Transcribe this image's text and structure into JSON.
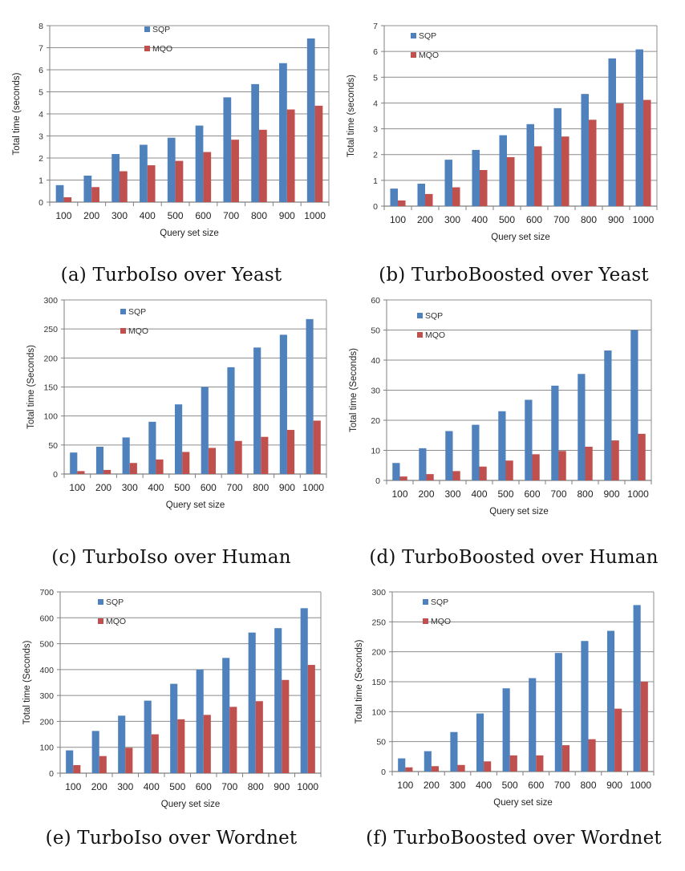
{
  "colors": {
    "SQP": "#4F81BD",
    "MQO": "#C0504D",
    "grid": "#8c8c8c",
    "axis": "#7f7f7f"
  },
  "chart_data": [
    {
      "type": "bar",
      "panel": "a",
      "caption": "(a) TurboIso over Yeast",
      "xlabel": "Query set size",
      "ylabel": "Total time (seconds)",
      "categories": [
        "100",
        "200",
        "300",
        "400",
        "500",
        "600",
        "700",
        "800",
        "900",
        "1000"
      ],
      "ylim": [
        0,
        8
      ],
      "yticks": [
        0,
        1,
        2,
        3,
        4,
        5,
        6,
        7,
        8
      ],
      "grid": true,
      "legend_position": "top-center",
      "series": [
        {
          "name": "SQP",
          "values": [
            0.77,
            1.2,
            2.18,
            2.6,
            2.92,
            3.47,
            4.75,
            5.35,
            6.3,
            7.42
          ]
        },
        {
          "name": "MQO",
          "values": [
            0.22,
            0.68,
            1.4,
            1.67,
            1.87,
            2.27,
            2.83,
            3.28,
            4.2,
            4.37
          ]
        }
      ]
    },
    {
      "type": "bar",
      "panel": "b",
      "caption": "(b) TurboBoosted over Yeast",
      "xlabel": "Query set size",
      "ylabel": "Total time (seconds)",
      "categories": [
        "100",
        "200",
        "300",
        "400",
        "500",
        "600",
        "700",
        "800",
        "900",
        "1000"
      ],
      "ylim": [
        0,
        7
      ],
      "yticks": [
        0,
        1,
        2,
        3,
        4,
        5,
        6,
        7
      ],
      "grid": true,
      "legend_position": "top-left",
      "series": [
        {
          "name": "SQP",
          "values": [
            0.68,
            0.87,
            1.8,
            2.18,
            2.75,
            3.18,
            3.8,
            4.35,
            5.73,
            6.08
          ]
        },
        {
          "name": "MQO",
          "values": [
            0.22,
            0.47,
            0.73,
            1.4,
            1.9,
            2.32,
            2.7,
            3.35,
            3.98,
            4.12
          ]
        }
      ]
    },
    {
      "type": "bar",
      "panel": "c",
      "caption": "(c) TurboIso over Human",
      "xlabel": "Query set size",
      "ylabel": "Total time (Seconds)",
      "categories": [
        "100",
        "200",
        "300",
        "400",
        "500",
        "600",
        "700",
        "800",
        "900",
        "1000"
      ],
      "ylim": [
        0,
        300
      ],
      "yticks": [
        0,
        50,
        100,
        150,
        200,
        250,
        300
      ],
      "grid": true,
      "legend_position": "top-left",
      "series": [
        {
          "name": "SQP",
          "values": [
            37,
            47,
            63,
            90,
            120,
            150,
            184,
            218,
            240,
            267
          ]
        },
        {
          "name": "MQO",
          "values": [
            5,
            7,
            19,
            25,
            38,
            45,
            57,
            64,
            76,
            92
          ]
        }
      ]
    },
    {
      "type": "bar",
      "panel": "d",
      "caption": "(d) TurboBoosted over Human",
      "xlabel": "Query set size",
      "ylabel": "Total time (Seconds)",
      "categories": [
        "100",
        "200",
        "300",
        "400",
        "500",
        "600",
        "700",
        "800",
        "900",
        "1000"
      ],
      "ylim": [
        0,
        60
      ],
      "yticks": [
        0,
        10,
        20,
        30,
        40,
        50,
        60
      ],
      "grid": true,
      "legend_position": "top-left",
      "series": [
        {
          "name": "SQP",
          "values": [
            5.8,
            10.7,
            16.4,
            18.5,
            23,
            26.8,
            31.5,
            35.4,
            43.2,
            50
          ]
        },
        {
          "name": "MQO",
          "values": [
            1.3,
            2.1,
            3.1,
            4.6,
            6.6,
            8.7,
            9.8,
            11.2,
            13.3,
            15.5
          ]
        }
      ]
    },
    {
      "type": "bar",
      "panel": "e",
      "caption": "(e) TurboIso over Wordnet",
      "xlabel": "Query set size",
      "ylabel": "Total time (Seconds)",
      "categories": [
        "100",
        "200",
        "300",
        "400",
        "500",
        "600",
        "700",
        "800",
        "900",
        "1000"
      ],
      "ylim": [
        0,
        700
      ],
      "yticks": [
        0,
        100,
        200,
        300,
        400,
        500,
        600,
        700
      ],
      "grid": true,
      "legend_position": "top-left",
      "series": [
        {
          "name": "SQP",
          "values": [
            88,
            163,
            222,
            280,
            345,
            400,
            445,
            543,
            560,
            637
          ]
        },
        {
          "name": "MQO",
          "values": [
            31,
            66,
            98,
            150,
            208,
            225,
            256,
            278,
            360,
            418
          ]
        }
      ]
    },
    {
      "type": "bar",
      "panel": "f",
      "caption": "(f) TurboBoosted over Wordnet",
      "xlabel": "Query set size",
      "ylabel": "Total time (Seconds)",
      "categories": [
        "100",
        "200",
        "300",
        "400",
        "500",
        "600",
        "700",
        "800",
        "900",
        "1000"
      ],
      "ylim": [
        0,
        300
      ],
      "yticks": [
        0,
        50,
        100,
        150,
        200,
        250,
        300
      ],
      "grid": true,
      "legend_position": "top-left",
      "series": [
        {
          "name": "SQP",
          "values": [
            22,
            34,
            66,
            97,
            139,
            156,
            198,
            218,
            235,
            278
          ]
        },
        {
          "name": "MQO",
          "values": [
            7,
            9,
            11,
            17,
            27,
            27,
            44,
            54,
            105,
            150
          ]
        }
      ]
    }
  ]
}
